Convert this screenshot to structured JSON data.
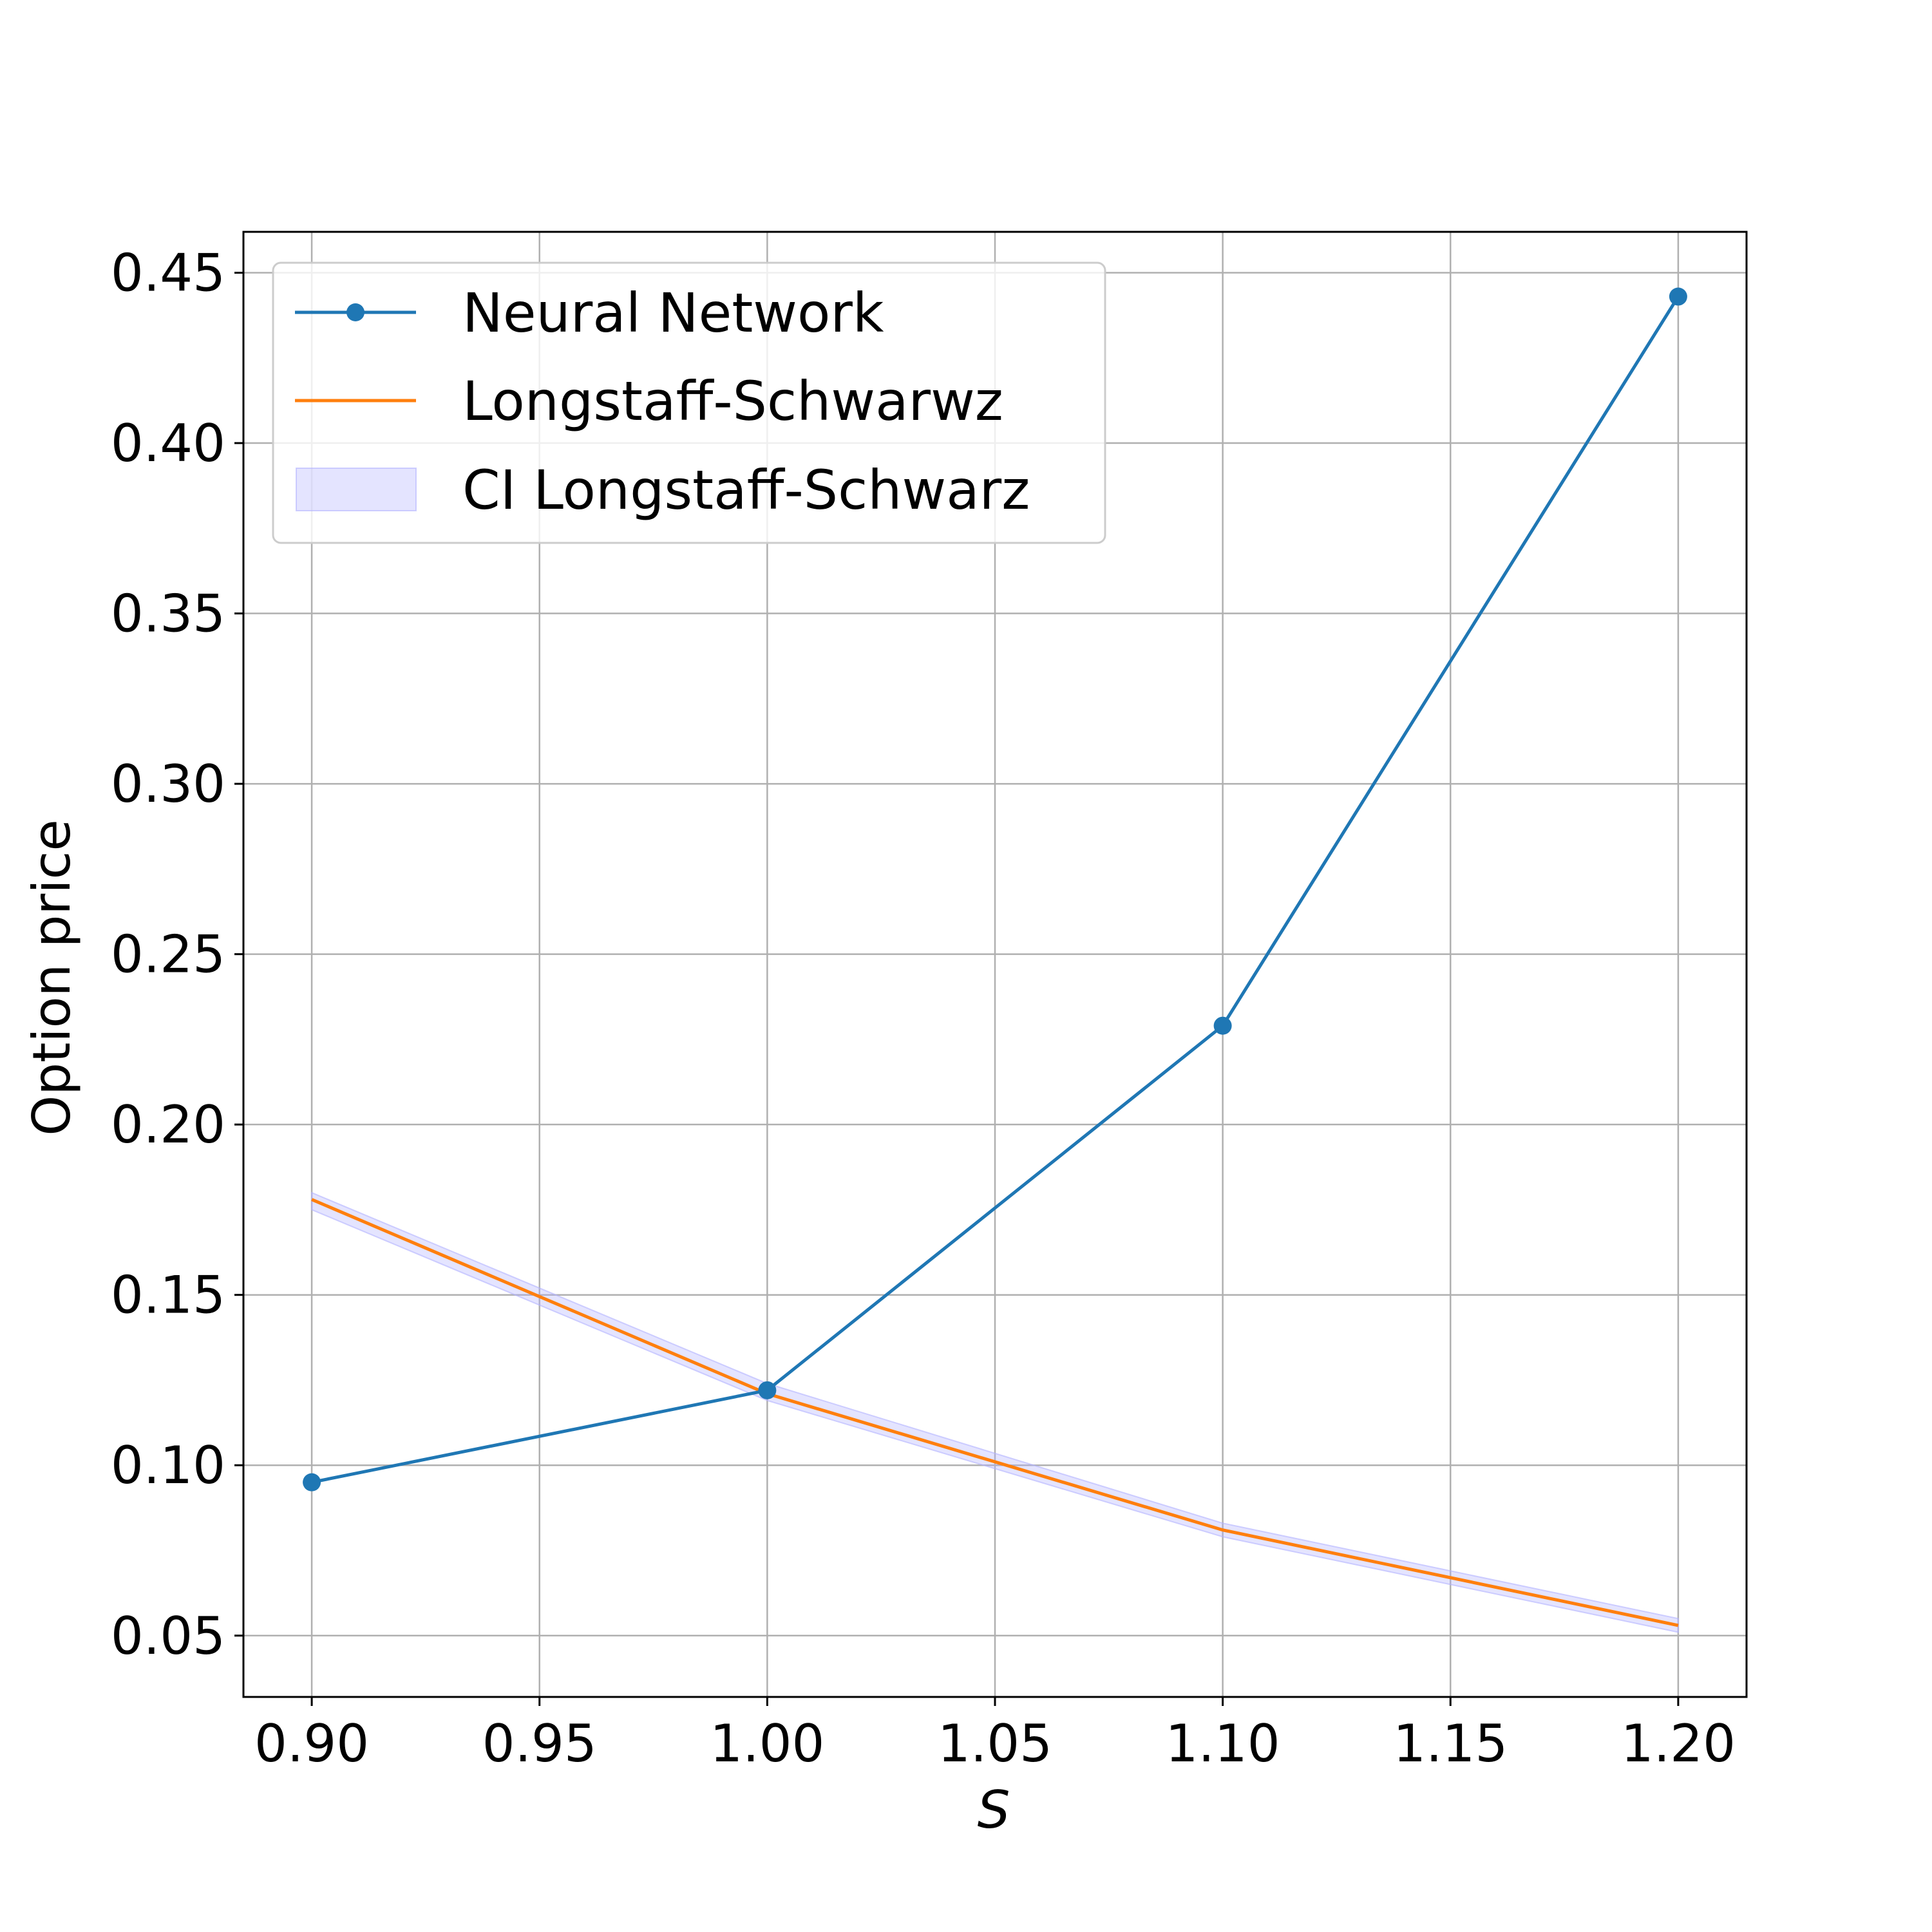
{
  "chart_data": {
    "type": "line",
    "xlabel": "S",
    "ylabel": "Option price",
    "xlim": [
      0.885,
      1.215
    ],
    "ylim": [
      0.032,
      0.462
    ],
    "xticks": [
      "0.90",
      "0.95",
      "1.00",
      "1.05",
      "1.10",
      "1.15",
      "1.20"
    ],
    "yticks": [
      "0.05",
      "0.10",
      "0.15",
      "0.20",
      "0.25",
      "0.30",
      "0.35",
      "0.40",
      "0.45"
    ],
    "grid": true,
    "legend_position": "top-left",
    "series": [
      {
        "name": "Neural Network",
        "kind": "line-markers",
        "color": "#1f77b4",
        "x": [
          0.9,
          1.0,
          1.1,
          1.2
        ],
        "y": [
          0.095,
          0.122,
          0.229,
          0.443
        ]
      },
      {
        "name": "Longstaff-Schwarwz",
        "kind": "line",
        "color": "#ff7f0e",
        "x": [
          0.9,
          1.0,
          1.1,
          1.2
        ],
        "y": [
          0.178,
          0.121,
          0.081,
          0.053
        ]
      },
      {
        "name": "CI Longstaff-Schwarz",
        "kind": "band",
        "color": "#b3b3ff",
        "x": [
          0.9,
          1.0,
          1.1,
          1.2
        ],
        "lower": [
          0.175,
          0.119,
          0.079,
          0.051
        ],
        "upper": [
          0.18,
          0.124,
          0.083,
          0.055
        ]
      }
    ]
  }
}
